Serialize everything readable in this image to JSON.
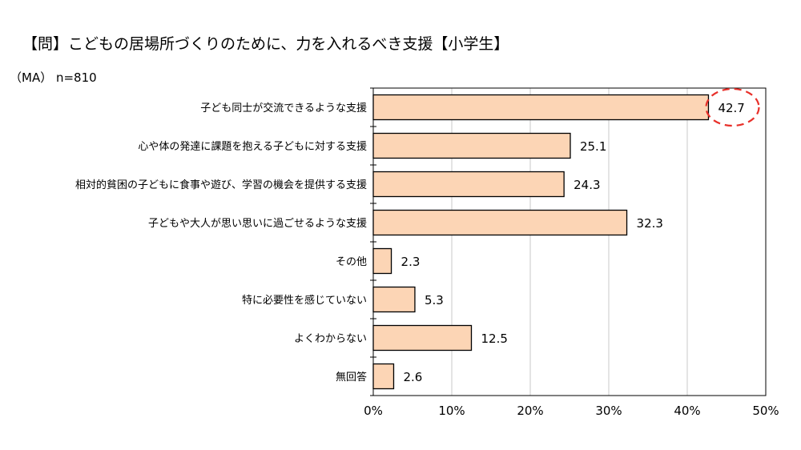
{
  "chart_data": {
    "type": "bar",
    "orientation": "horizontal",
    "title": "【問】こどもの居場所づくりのために、力を入れるべき支援【小学生】",
    "subtitle": "（MA） n=810",
    "categories": [
      "子ども同士が交流できるような支援",
      "心や体の発達に課題を抱える子どもに対する支援",
      "相対的貧困の子どもに食事や遊び、学習の機会を提供する支援",
      "子どもや大人が思い思いに過ごせるような支援",
      "その他",
      "特に必要性を感じていない",
      "よくわからない",
      "無回答"
    ],
    "values": [
      42.7,
      25.1,
      24.3,
      32.3,
      2.3,
      5.3,
      12.5,
      2.6
    ],
    "value_labels": [
      "42.7",
      "25.1",
      "24.3",
      "32.3",
      "2.3",
      "5.3",
      "12.5",
      "2.6"
    ],
    "xlim": [
      0,
      50
    ],
    "xticks": [
      "0%",
      "10%",
      "20%",
      "30%",
      "40%",
      "50%"
    ],
    "grid": true,
    "highlight_index": 0,
    "colors": {
      "bar_fill": "#fcd5b5",
      "bar_stroke": "#000000",
      "grid": "#c8c8c8",
      "highlight": "#e8302a"
    }
  }
}
